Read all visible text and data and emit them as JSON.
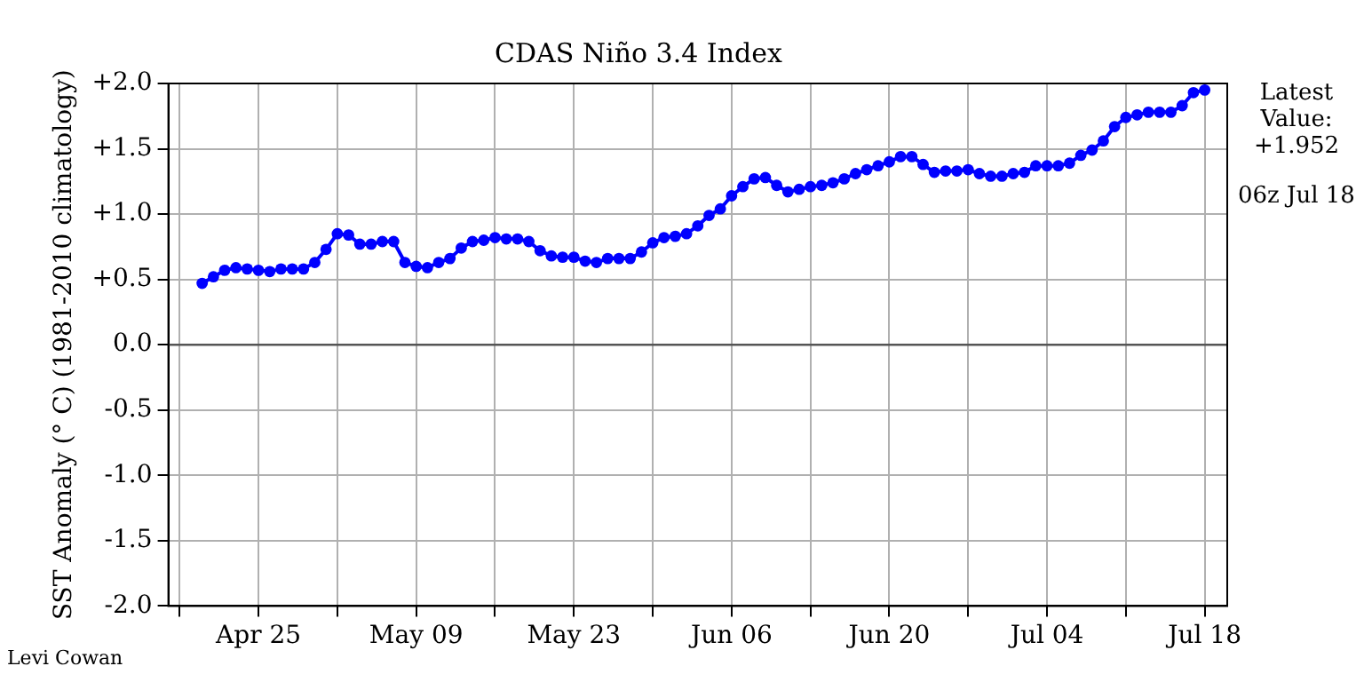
{
  "chart_data": {
    "type": "line",
    "title": "CDAS Niño 3.4 Index",
    "ylabel": "SST Anomaly (° C) (1981-2010 climatology)",
    "annotations": [
      "Latest\nValue:\n+1.952",
      "06z Jul 18",
      "Levi Cowan"
    ],
    "x": [
      "--04-20",
      "--04-21",
      "--04-22",
      "--04-23",
      "--04-24",
      "--04-25",
      "--04-26",
      "--04-27",
      "--04-28",
      "--04-29",
      "--04-30",
      "--05-01",
      "--05-02",
      "--05-03",
      "--05-04",
      "--05-05",
      "--05-06",
      "--05-07",
      "--05-08",
      "--05-09",
      "--05-10",
      "--05-11",
      "--05-12",
      "--05-13",
      "--05-14",
      "--05-15",
      "--05-16",
      "--05-17",
      "--05-18",
      "--05-19",
      "--05-20",
      "--05-21",
      "--05-22",
      "--05-23",
      "--05-24",
      "--05-25",
      "--05-26",
      "--05-27",
      "--05-28",
      "--05-29",
      "--05-30",
      "--05-31",
      "--06-01",
      "--06-02",
      "--06-03",
      "--06-04",
      "--06-05",
      "--06-06",
      "--06-07",
      "--06-08",
      "--06-09",
      "--06-10",
      "--06-11",
      "--06-12",
      "--06-13",
      "--06-14",
      "--06-15",
      "--06-16",
      "--06-17",
      "--06-18",
      "--06-19",
      "--06-20",
      "--06-21",
      "--06-22",
      "--06-23",
      "--06-24",
      "--06-25",
      "--06-26",
      "--06-27",
      "--06-28",
      "--06-29",
      "--06-30",
      "--07-01",
      "--07-02",
      "--07-03",
      "--07-04",
      "--07-05",
      "--07-06",
      "--07-07",
      "--07-08",
      "--07-09",
      "--07-10",
      "--07-11",
      "--07-12",
      "--07-13",
      "--07-14",
      "--07-15",
      "--07-16",
      "--07-17",
      "--07-18"
    ],
    "series": [
      {
        "color": "#0000ff",
        "values": [
          0.47,
          0.52,
          0.57,
          0.59,
          0.58,
          0.57,
          0.56,
          0.58,
          0.58,
          0.58,
          0.63,
          0.73,
          0.85,
          0.84,
          0.77,
          0.77,
          0.79,
          0.79,
          0.63,
          0.6,
          0.59,
          0.63,
          0.66,
          0.74,
          0.79,
          0.8,
          0.82,
          0.81,
          0.81,
          0.79,
          0.72,
          0.68,
          0.67,
          0.67,
          0.64,
          0.63,
          0.66,
          0.66,
          0.66,
          0.71,
          0.78,
          0.82,
          0.83,
          0.85,
          0.91,
          0.99,
          1.04,
          1.14,
          1.21,
          1.27,
          1.28,
          1.22,
          1.17,
          1.19,
          1.21,
          1.22,
          1.24,
          1.27,
          1.31,
          1.34,
          1.37,
          1.4,
          1.44,
          1.44,
          1.38,
          1.32,
          1.33,
          1.33,
          1.34,
          1.31,
          1.29,
          1.29,
          1.31,
          1.32,
          1.37,
          1.37,
          1.37,
          1.39,
          1.45,
          1.49,
          1.56,
          1.67,
          1.74,
          1.76,
          1.78,
          1.78,
          1.78,
          1.83,
          1.93,
          1.95
        ]
      }
    ],
    "xlim": [
      "--04-17",
      "--07-20"
    ],
    "xticks": [
      {
        "value": "--04-18",
        "label": null
      },
      {
        "value": "--04-25",
        "label": "Apr 25"
      },
      {
        "value": "--05-02",
        "label": null
      },
      {
        "value": "--05-09",
        "label": "May 09"
      },
      {
        "value": "--05-16",
        "label": null
      },
      {
        "value": "--05-23",
        "label": "May 23"
      },
      {
        "value": "--05-30",
        "label": null
      },
      {
        "value": "--06-06",
        "label": "Jun 06"
      },
      {
        "value": "--06-13",
        "label": null
      },
      {
        "value": "--06-20",
        "label": "Jun 20"
      },
      {
        "value": "--06-27",
        "label": null
      },
      {
        "value": "--07-04",
        "label": "Jul 04"
      },
      {
        "value": "--07-11",
        "label": null
      },
      {
        "value": "--07-18",
        "label": "Jul 18"
      }
    ],
    "ylim": [
      -2,
      2
    ],
    "yticks": [
      {
        "value": -2,
        "label": "-2.0"
      },
      {
        "value": -1.5,
        "label": "-1.5"
      },
      {
        "value": -1,
        "label": "-1.0"
      },
      {
        "value": -0.5,
        "label": "-0.5"
      },
      {
        "value": 0,
        "label": "0.0"
      },
      {
        "value": 0.5,
        "label": "+0.5"
      },
      {
        "value": 1,
        "label": "+1.0"
      },
      {
        "value": 1.5,
        "label": "+1.5"
      },
      {
        "value": 2,
        "label": "+2.0"
      }
    ],
    "ref_lines": [
      {
        "axis": "y",
        "value": 0,
        "color": "#555555"
      }
    ],
    "grid": true,
    "legend": false,
    "marker": "circle",
    "line_style": "solid"
  }
}
